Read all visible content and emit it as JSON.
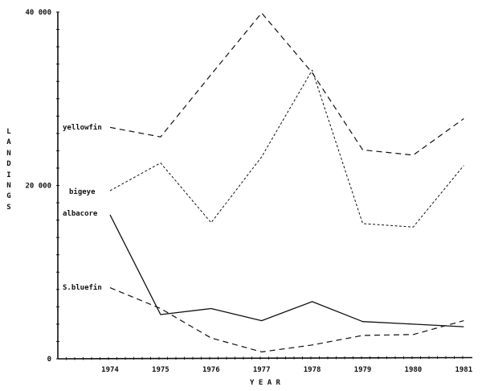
{
  "chart_data": {
    "type": "line",
    "title": "",
    "xlabel": "YEAR",
    "ylabel": "LANDINGS",
    "x": [
      1974,
      1975,
      1976,
      1977,
      1978,
      1979,
      1980,
      1981
    ],
    "x_tick_labels": [
      "1974",
      "1975",
      "1976",
      "1977",
      "1978",
      "1979",
      "1980",
      "1981"
    ],
    "y_tick_labels": [
      "0",
      "20 000",
      "40 000"
    ],
    "y_ticks": [
      0,
      20000,
      40000
    ],
    "ylim": [
      0,
      40000
    ],
    "grid": false,
    "legend": "inline labels at left of each series",
    "series": [
      {
        "name": "yellowfin",
        "style": "long-dash",
        "values": [
          26700,
          25600,
          32800,
          39900,
          33000,
          24100,
          23500,
          27700
        ]
      },
      {
        "name": "bigeye",
        "style": "short-dash",
        "values": [
          19400,
          22600,
          15700,
          23300,
          33300,
          15600,
          15200,
          22300
        ]
      },
      {
        "name": "albacore",
        "style": "solid",
        "values": [
          16600,
          5100,
          5800,
          4400,
          6600,
          4300,
          4000,
          3700
        ]
      },
      {
        "name": "S.bluefin",
        "style": "long-dash",
        "values": [
          8200,
          5800,
          2400,
          800,
          1600,
          2700,
          2800,
          4400
        ]
      }
    ]
  },
  "axes": {
    "y_title": "LANDINGS",
    "x_title": "Y E A R"
  },
  "colors": {
    "ink": "#111111",
    "background": "#ffffff"
  }
}
